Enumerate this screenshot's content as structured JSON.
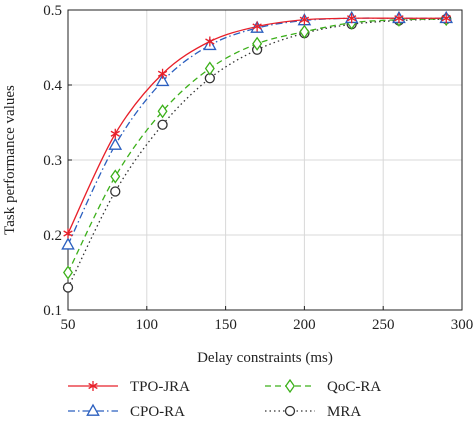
{
  "chart_data": {
    "type": "line",
    "xlabel": "Delay constraints (ms)",
    "ylabel": "Task performance values",
    "xlim": [
      50,
      300
    ],
    "ylim": [
      0.1,
      0.5
    ],
    "xticks": [
      "50",
      "100",
      "150",
      "200",
      "250",
      "300"
    ],
    "yticks": [
      "0.1",
      "0.2",
      "0.3",
      "0.4",
      "0.5"
    ],
    "grid": true,
    "legend_position": "bottom",
    "x": [
      50,
      80,
      110,
      140,
      170,
      200,
      230,
      260,
      290
    ],
    "series": [
      {
        "name": "TPO-JRA",
        "color": "#e8202a",
        "marker": "asterisk",
        "dash": "solid",
        "values": [
          0.202,
          0.335,
          0.415,
          0.458,
          0.478,
          0.487,
          0.489,
          0.489,
          0.489
        ]
      },
      {
        "name": "CPO-RA",
        "color": "#2b5fbf",
        "marker": "triangle",
        "dash": "dashdot",
        "values": [
          0.187,
          0.32,
          0.405,
          0.453,
          0.476,
          0.486,
          0.489,
          0.489,
          0.489
        ]
      },
      {
        "name": "QoC-RA",
        "color": "#3cb01a",
        "marker": "diamond",
        "dash": "dashed",
        "values": [
          0.15,
          0.278,
          0.365,
          0.422,
          0.455,
          0.471,
          0.483,
          0.487,
          0.488
        ]
      },
      {
        "name": "MRA",
        "color": "#333333",
        "marker": "circle",
        "dash": "dotted",
        "values": [
          0.13,
          0.258,
          0.347,
          0.409,
          0.447,
          0.469,
          0.481,
          0.486,
          0.488
        ]
      }
    ]
  }
}
